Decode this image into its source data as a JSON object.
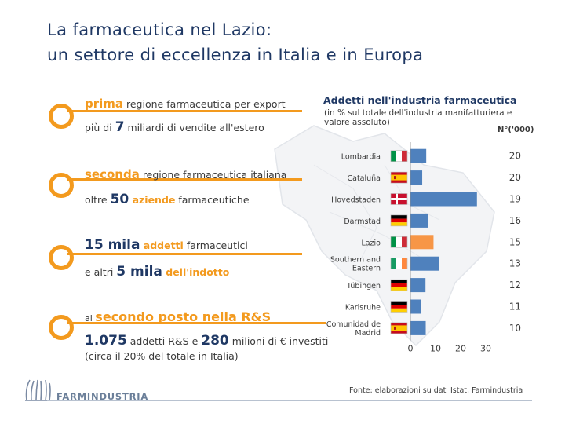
{
  "title": {
    "line1": "La farmaceutica nel Lazio:",
    "line2": "un settore di eccellenza in Italia e in Europa"
  },
  "facts": {
    "f1": {
      "strong": "prima",
      "rest": " regione farmaceutica per export"
    },
    "f2": {
      "pre": "più di ",
      "num": "7",
      "rest": " miliardi di vendite all'estero"
    },
    "f3": {
      "strong": "seconda",
      "rest": " regione farmaceutica italiana"
    },
    "f4": {
      "pre": "oltre ",
      "num": "50",
      "mid": " aziende",
      "rest": " farmaceutiche"
    },
    "f5": {
      "num": "15 mila",
      "mid": " addetti",
      "rest": " farmaceutici"
    },
    "f6": {
      "pre": "e altri ",
      "num": "5 mila",
      "mid": " dell'indotto"
    },
    "f7": {
      "pre": "al ",
      "strong": "secondo posto nella R&S"
    },
    "f8": {
      "num1": "1.075",
      "mid": " addetti R&S e ",
      "num2": "280",
      "rest": " milioni di € investiti"
    },
    "f9": {
      "text": "(circa il 20% del totale in Italia)"
    }
  },
  "chart_data": {
    "type": "bar",
    "orientation": "horizontal",
    "title": "Addetti nell'industria farmaceutica",
    "subtitle": "(in % sul totale dell'industria manifatturiera e valore assoluto)",
    "unit_label": "N°('000)",
    "categories": [
      "Lombardia",
      "Cataluña",
      "Hovedstaden",
      "Darmstad",
      "Lazio",
      "Southern and Eastern",
      "Tübingen",
      "Karlsruhe",
      "Comunidad de Madrid"
    ],
    "flags": [
      "it",
      "es",
      "dk",
      "de",
      "it",
      "ie",
      "de",
      "de",
      "es"
    ],
    "values": [
      6.3,
      4.7,
      26.5,
      7.0,
      9.2,
      11.5,
      6.0,
      4.2,
      6.1
    ],
    "absolute_values": [
      "20",
      "20",
      "19",
      "16",
      "15",
      "13",
      "12",
      "11",
      "10"
    ],
    "highlight": "Lazio",
    "xlim": [
      0,
      30
    ],
    "xticks": [
      "0",
      "10",
      "20",
      "30"
    ],
    "grid": false
  },
  "colors": {
    "bar": "#4f81bd",
    "highlight": "#f79646",
    "accent": "#f39a1e",
    "title": "#1f3864"
  },
  "source": "Fonte: elaborazioni su dati Istat, Farmindustria",
  "logo": {
    "name": "FARMINDUSTRIA"
  }
}
